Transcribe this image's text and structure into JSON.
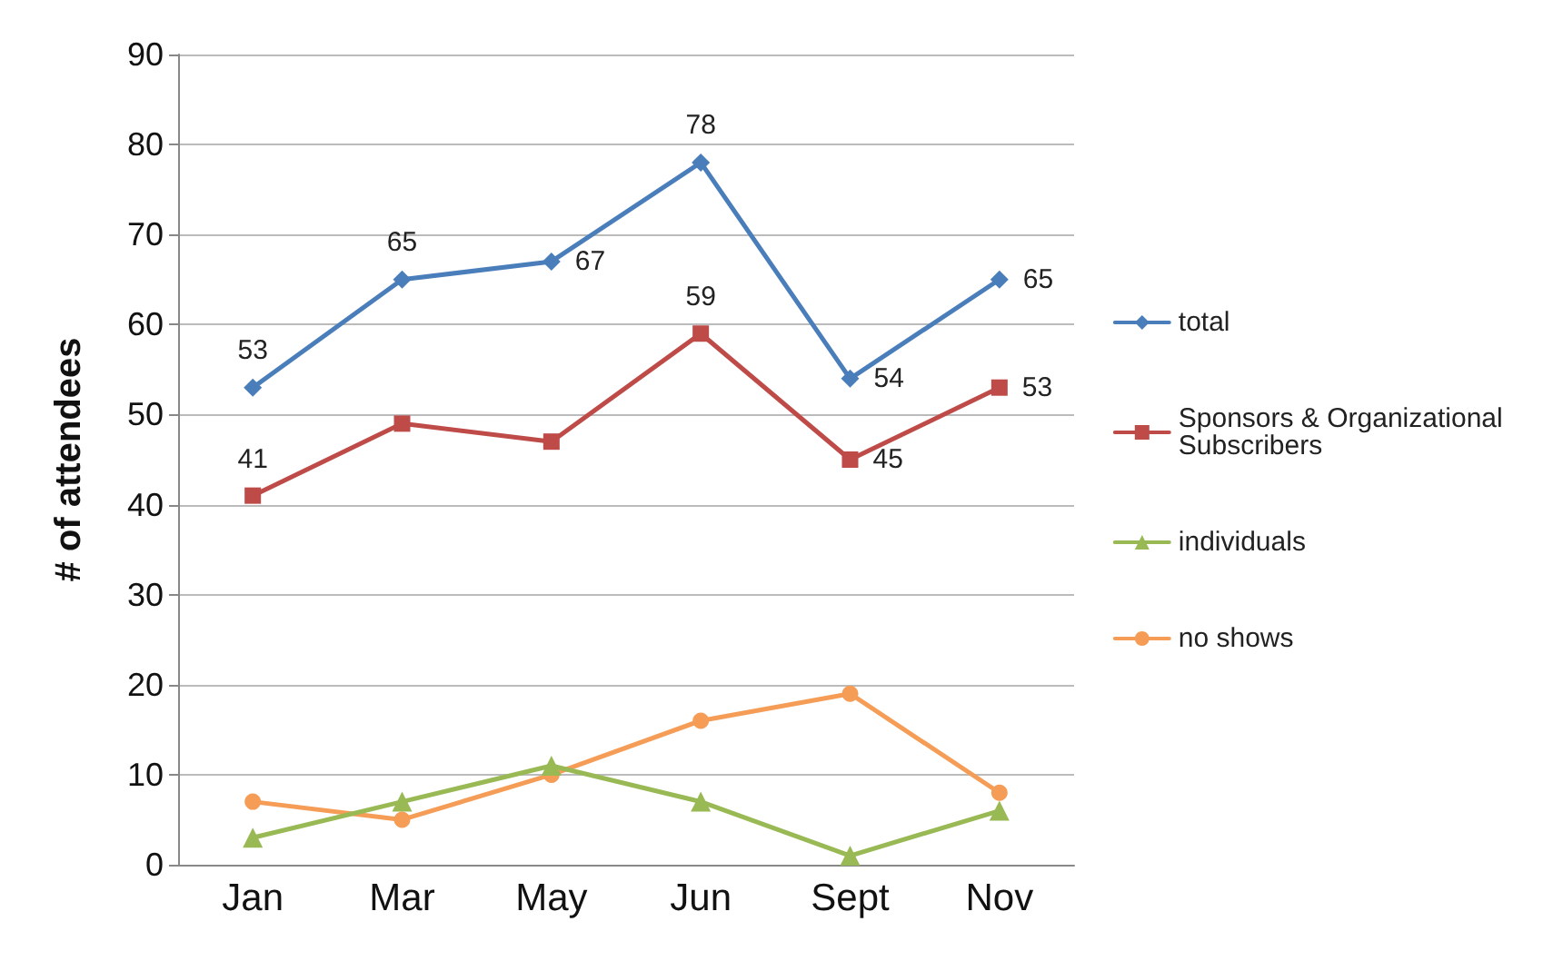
{
  "chart_data": {
    "type": "line",
    "ylabel": "# of attendees",
    "categories": [
      "Jan",
      "Mar",
      "May",
      "Jun",
      "Sept",
      "Nov"
    ],
    "series": [
      {
        "name": "total",
        "color": "#4a7ebb",
        "marker": "diamond",
        "values": [
          53,
          65,
          67,
          78,
          54,
          65
        ],
        "value_labels": [
          "53",
          "65",
          "67",
          "78",
          "54",
          "65"
        ]
      },
      {
        "name": "Sponsors & Organizational Subscribers",
        "color": "#be4b48",
        "marker": "square",
        "values": [
          41,
          49,
          47,
          59,
          45,
          53
        ],
        "value_labels": [
          "41",
          null,
          null,
          "59",
          "45",
          "53"
        ]
      },
      {
        "name": "individuals",
        "color": "#98b954",
        "marker": "triangle",
        "values": [
          3,
          7,
          11,
          7,
          1,
          6
        ]
      },
      {
        "name": "no shows",
        "color": "#f59d56",
        "marker": "circle",
        "values": [
          7,
          5,
          10,
          16,
          19,
          8
        ]
      }
    ],
    "ylim": [
      0,
      90
    ],
    "yticks": [
      0,
      10,
      20,
      30,
      40,
      50,
      60,
      70,
      80,
      90
    ],
    "grid": "y",
    "legend": "right",
    "line_style": "solid"
  }
}
